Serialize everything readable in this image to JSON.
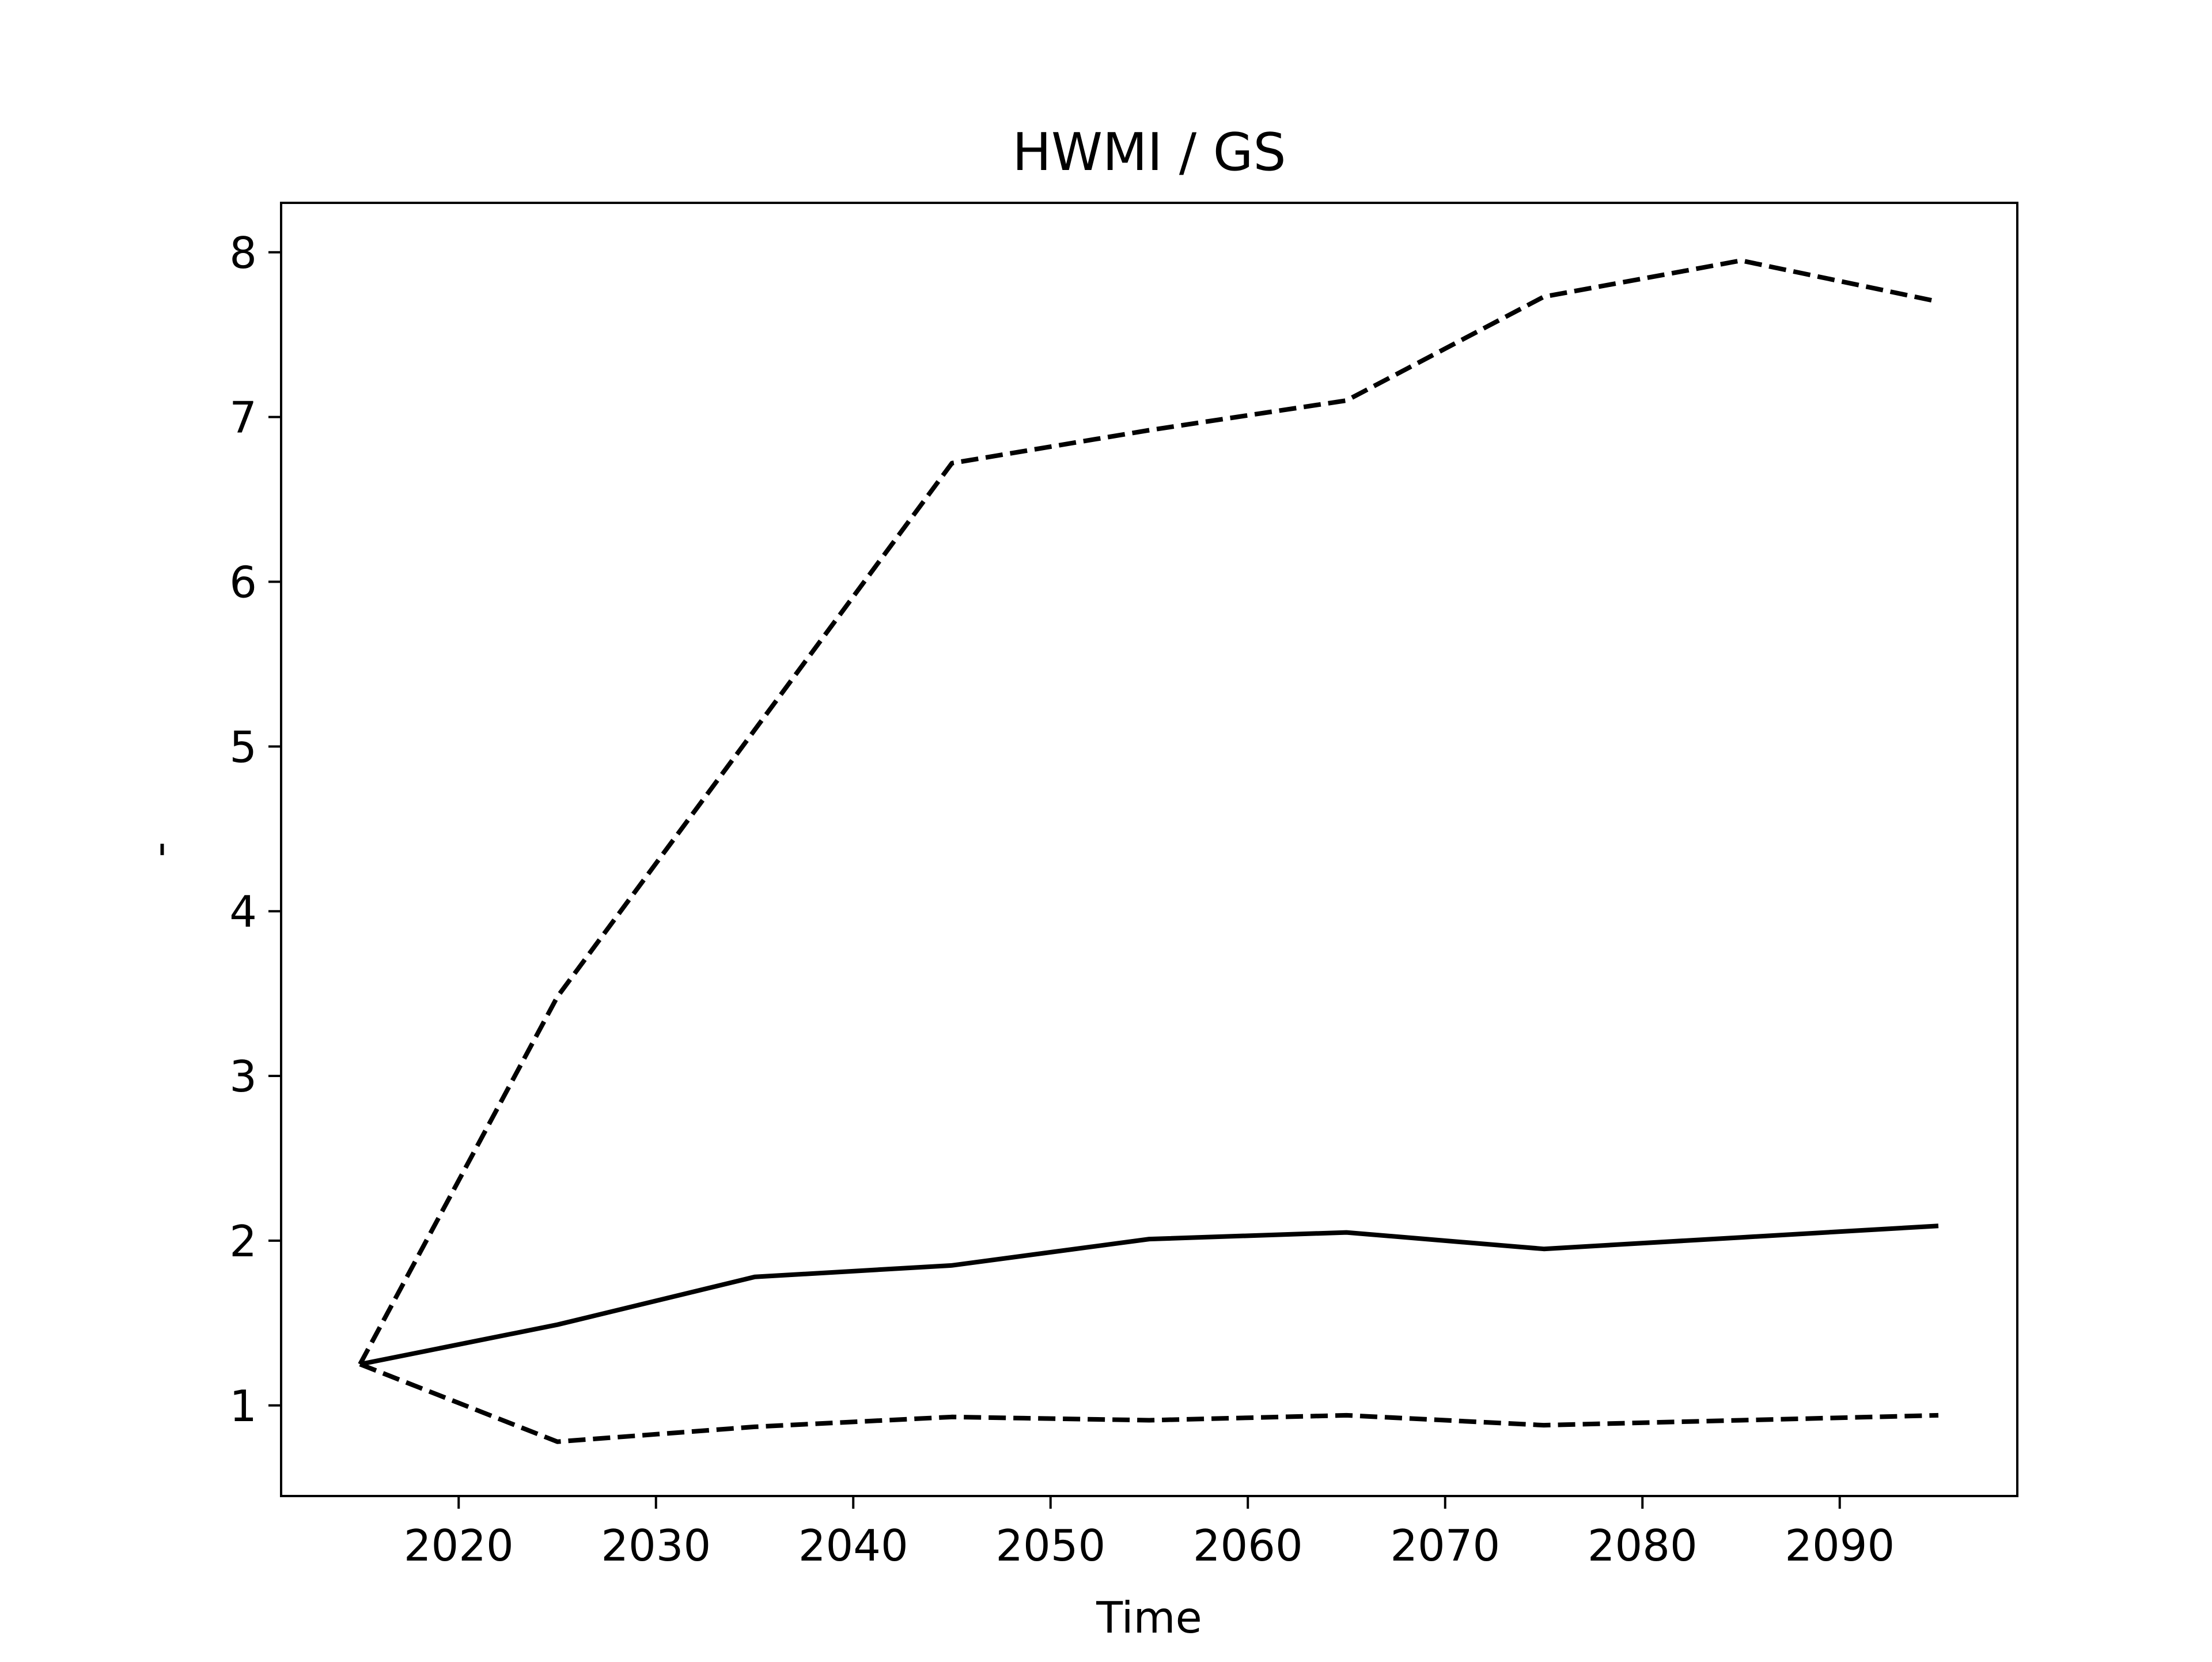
{
  "chart_data": {
    "type": "line",
    "title": "HWMI / GS",
    "xlabel": "Time",
    "ylabel": "-",
    "xlim": [
      2011,
      2099
    ],
    "ylim": [
      0.45,
      8.3
    ],
    "x_ticks": [
      2020,
      2030,
      2040,
      2050,
      2060,
      2070,
      2080,
      2090
    ],
    "y_ticks": [
      1,
      2,
      3,
      4,
      5,
      6,
      7,
      8
    ],
    "grid": false,
    "legend": "none",
    "x": [
      2015,
      2025,
      2035,
      2045,
      2055,
      2065,
      2075,
      2085,
      2095
    ],
    "series": [
      {
        "style": "solid",
        "color": "#000000",
        "values": [
          1.25,
          1.49,
          1.78,
          1.85,
          2.01,
          2.05,
          1.95,
          2.02,
          2.09
        ]
      },
      {
        "style": "dashed",
        "color": "#000000",
        "values": [
          1.25,
          3.48,
          5.1,
          6.72,
          6.92,
          7.1,
          7.73,
          7.95,
          7.7
        ]
      },
      {
        "style": "dashed",
        "color": "#000000",
        "values": [
          1.25,
          0.78,
          0.87,
          0.93,
          0.91,
          0.94,
          0.88,
          0.91,
          0.94
        ]
      }
    ]
  }
}
